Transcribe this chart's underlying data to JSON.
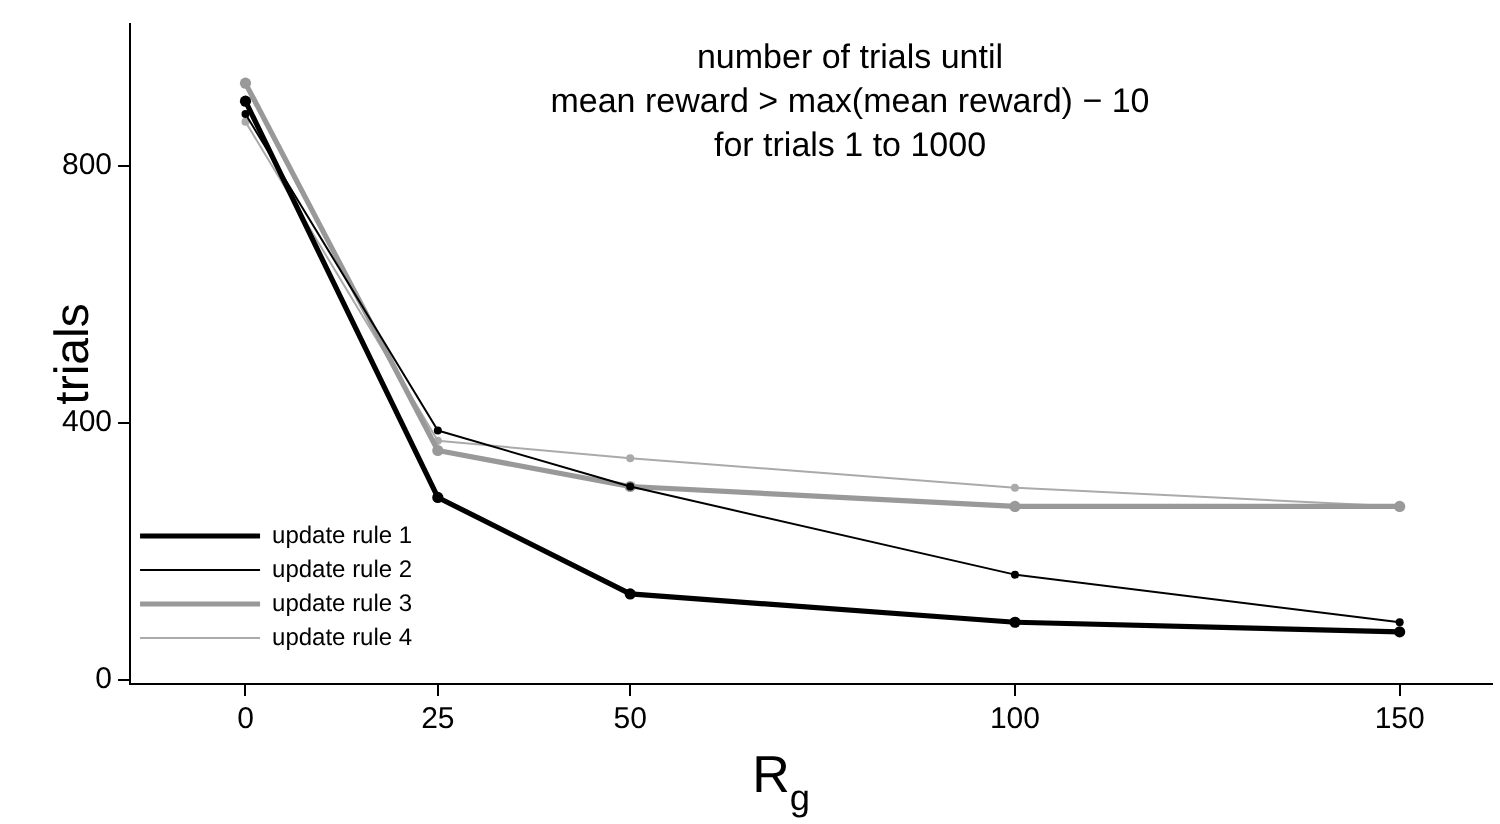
{
  "chart_data": {
    "type": "line",
    "title": "number of trials until\nmean reward > max(mean reward) − 10\nfor trials 1 to 1000",
    "xlabel": "R$_{g}$",
    "ylabel": "trials",
    "x": [
      0,
      25,
      50,
      100,
      150
    ],
    "series": [
      {
        "name": "update rule 1",
        "color": "#000000",
        "values": [
          900,
          284,
          134,
          90,
          75
        ]
      },
      {
        "name": "update rule 2",
        "color": "#000000",
        "values": [
          880,
          388,
          301,
          164,
          90
        ]
      },
      {
        "name": "update rule 3",
        "color": "#999999",
        "values": [
          928,
          357,
          301,
          270,
          270
        ]
      },
      {
        "name": "update rule 4",
        "color": "#aaaaaa",
        "values": [
          868,
          372,
          345,
          299,
          270
        ]
      }
    ],
    "xlim": [
      -15,
      162
    ],
    "xticks": [
      0,
      25,
      50,
      100,
      150
    ],
    "ylim": [
      -6,
      1020
    ],
    "yticks": [
      0,
      400,
      800
    ],
    "grid": false,
    "legend": "bottom left",
    "marker": "circle",
    "line_style": "solid"
  }
}
